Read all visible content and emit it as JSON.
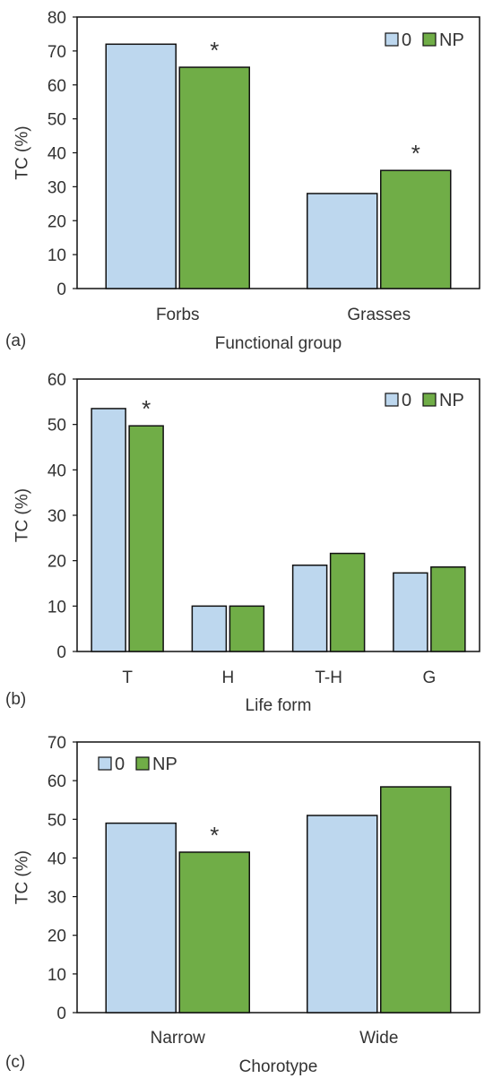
{
  "chart_data": [
    {
      "type": "bar",
      "panel_tag": "(a)",
      "xlabel": "Functional group",
      "ylabel": "TC (%)",
      "categories": [
        "Forbs",
        "Grasses"
      ],
      "series": [
        {
          "name": "0",
          "values": [
            72,
            28
          ],
          "color": "#bdd7ee"
        },
        {
          "name": "NP",
          "values": [
            65.2,
            34.8
          ],
          "color": "#70ad47"
        }
      ],
      "ylim": [
        0,
        80
      ],
      "yticks": [
        0,
        10,
        20,
        30,
        40,
        50,
        60,
        70,
        80
      ],
      "grid": false,
      "legend": "top-right",
      "significance": [
        {
          "category": 0,
          "series": 1,
          "label": "*"
        },
        {
          "category": 1,
          "series": 1,
          "label": "*"
        }
      ]
    },
    {
      "type": "bar",
      "panel_tag": "(b)",
      "xlabel": "Life form",
      "ylabel": "TC (%)",
      "categories": [
        "T",
        "H",
        "T-H",
        "G"
      ],
      "series": [
        {
          "name": "0",
          "values": [
            53.5,
            10,
            19,
            17.3
          ],
          "color": "#bdd7ee"
        },
        {
          "name": "NP",
          "values": [
            49.7,
            10,
            21.6,
            18.6
          ],
          "color": "#70ad47"
        }
      ],
      "ylim": [
        0,
        60
      ],
      "yticks": [
        0,
        10,
        20,
        30,
        40,
        50,
        60
      ],
      "grid": false,
      "legend": "top-right",
      "significance": [
        {
          "category": 0,
          "series": 1,
          "label": "*"
        }
      ]
    },
    {
      "type": "bar",
      "panel_tag": "(c)",
      "xlabel": "Chorotype",
      "ylabel": "TC (%)",
      "categories": [
        "Narrow",
        "Wide"
      ],
      "series": [
        {
          "name": "0",
          "values": [
            49,
            51
          ],
          "color": "#bdd7ee"
        },
        {
          "name": "NP",
          "values": [
            41.5,
            58.4
          ],
          "color": "#70ad47"
        }
      ],
      "ylim": [
        0,
        70
      ],
      "yticks": [
        0,
        10,
        20,
        30,
        40,
        50,
        60,
        70
      ],
      "grid": false,
      "legend": "top-left",
      "significance": [
        {
          "category": 0,
          "series": 1,
          "label": "*"
        }
      ]
    }
  ]
}
